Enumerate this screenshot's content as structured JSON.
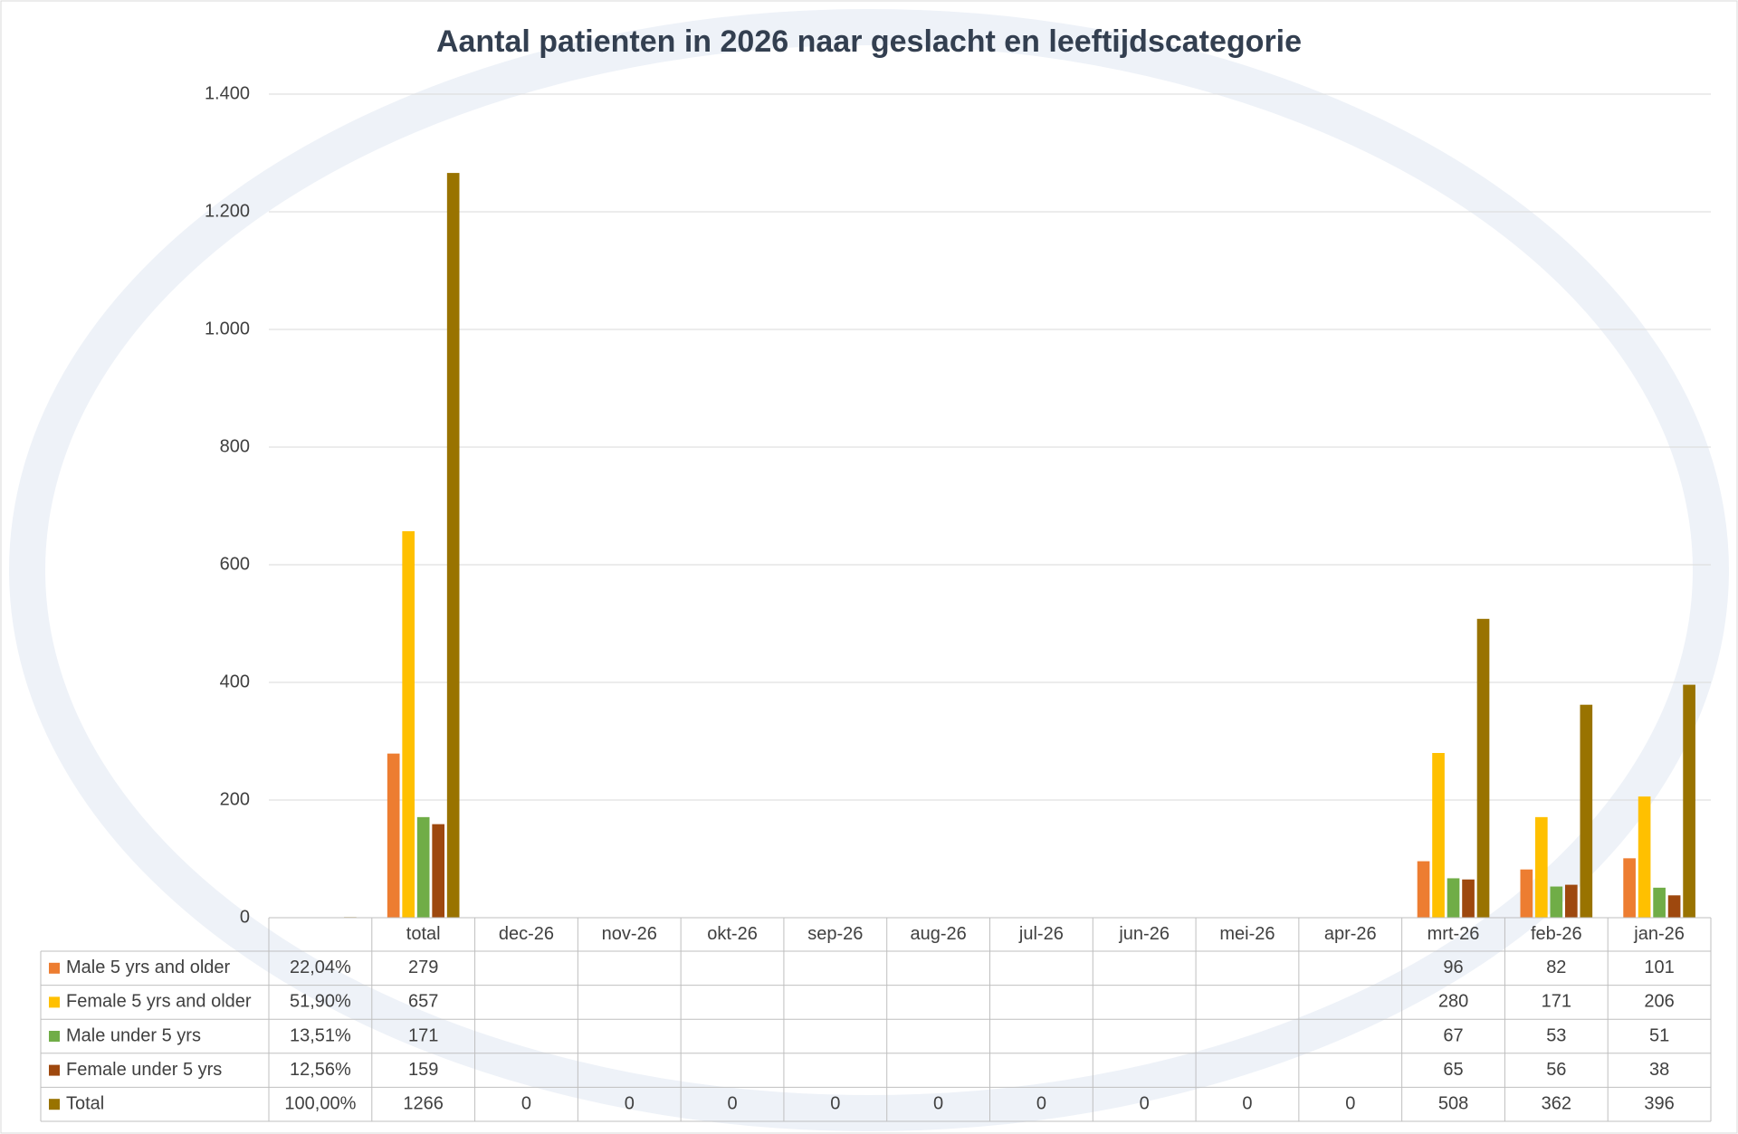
{
  "chart_data": {
    "type": "bar",
    "title": "Aantal patienten in 2026 naar geslacht en leeftijdscategorie",
    "categories": [
      null,
      "total",
      "dec-26",
      "nov-26",
      "okt-26",
      "sep-26",
      "aug-26",
      "jul-26",
      "jun-26",
      "mei-26",
      "apr-26",
      "mrt-26",
      "feb-26",
      "jan-26"
    ],
    "series": [
      {
        "name": "Male 5 yrs and older",
        "color": "#ED7D31",
        "values": [
          0.2204,
          279,
          null,
          null,
          null,
          null,
          null,
          null,
          null,
          null,
          null,
          96,
          82,
          101
        ],
        "value_labels": [
          "22,04%",
          null,
          null,
          null,
          null,
          null,
          null,
          null,
          null,
          null,
          null,
          null,
          null,
          null
        ]
      },
      {
        "name": "Female 5 yrs and older",
        "color": "#FFC000",
        "values": [
          0.519,
          657,
          null,
          null,
          null,
          null,
          null,
          null,
          null,
          null,
          null,
          280,
          171,
          206
        ],
        "value_labels": [
          "51,90%",
          null,
          null,
          null,
          null,
          null,
          null,
          null,
          null,
          null,
          null,
          null,
          null,
          null
        ]
      },
      {
        "name": "Male under 5 yrs",
        "color": "#70AD47",
        "values": [
          0.1351,
          171,
          null,
          null,
          null,
          null,
          null,
          null,
          null,
          null,
          null,
          67,
          53,
          51
        ],
        "value_labels": [
          "13,51%",
          null,
          null,
          null,
          null,
          null,
          null,
          null,
          null,
          null,
          null,
          null,
          null,
          null
        ]
      },
      {
        "name": "Female under 5 yrs",
        "color": "#9E480E",
        "values": [
          0.1256,
          159,
          null,
          null,
          null,
          null,
          null,
          null,
          null,
          null,
          null,
          65,
          56,
          38
        ],
        "value_labels": [
          "12,56%",
          null,
          null,
          null,
          null,
          null,
          null,
          null,
          null,
          null,
          null,
          null,
          null,
          null
        ]
      },
      {
        "name": "Total",
        "color": "#997300",
        "values": [
          1,
          1266,
          0,
          0,
          0,
          0,
          0,
          0,
          0,
          0,
          0,
          508,
          362,
          396
        ],
        "value_labels": [
          "100,00%",
          null,
          null,
          null,
          null,
          null,
          null,
          null,
          null,
          null,
          null,
          null,
          null,
          null
        ]
      }
    ],
    "ylim": [
      0,
      1400
    ],
    "yticks": [
      0,
      200,
      400,
      600,
      800,
      {
        "value": 1000,
        "label": "1.000"
      },
      {
        "value": 1200,
        "label": "1.200"
      },
      {
        "value": 1400,
        "label": "1.400"
      }
    ],
    "grid": true
  }
}
